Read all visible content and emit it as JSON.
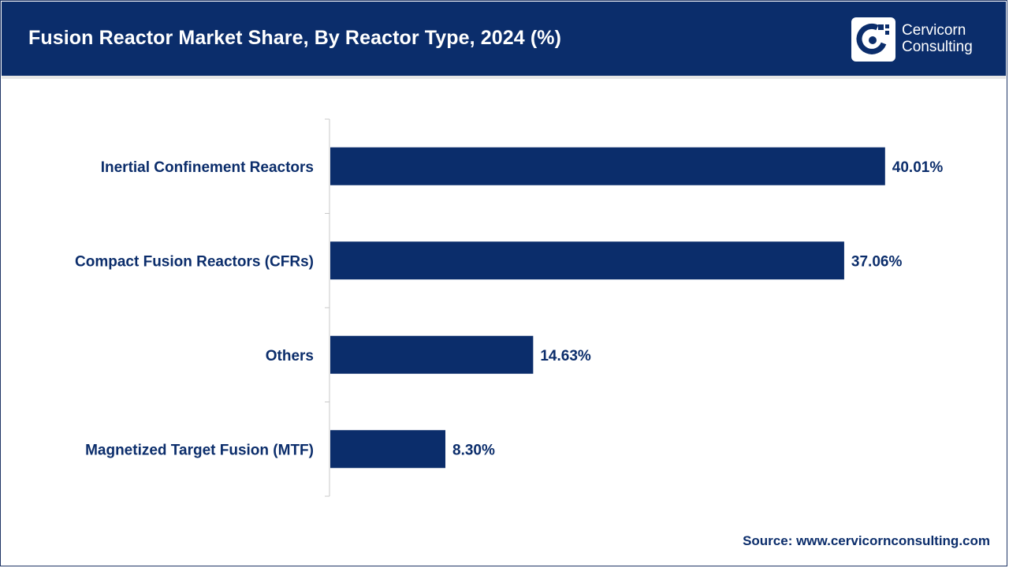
{
  "header": {
    "title": "Fusion Reactor Market Share, By Reactor Type, 2024 (%)",
    "logo_line1": "Cervicorn",
    "logo_line2": "Consulting",
    "logo_icon": "cervicorn-logo-icon"
  },
  "colors": {
    "header_bg": "#0b2d6b",
    "bar": "#0b2d6b",
    "text": "#0b2d6b",
    "axis": "#c8c8c8"
  },
  "chart_data": {
    "type": "bar",
    "orientation": "horizontal",
    "categories": [
      "Inertial Confinement Reactors",
      "Compact Fusion Reactors (CFRs)",
      "Others",
      "Magnetized Target Fusion (MTF)"
    ],
    "values": [
      40.01,
      37.06,
      14.63,
      8.3
    ],
    "value_labels": [
      "40.01%",
      "37.06%",
      "14.63%",
      "8.30%"
    ],
    "unit": "%",
    "xlim": [
      0,
      44
    ],
    "grid": false,
    "legend": "none"
  },
  "footer": {
    "source": "Source: www.cervicornconsulting.com"
  }
}
